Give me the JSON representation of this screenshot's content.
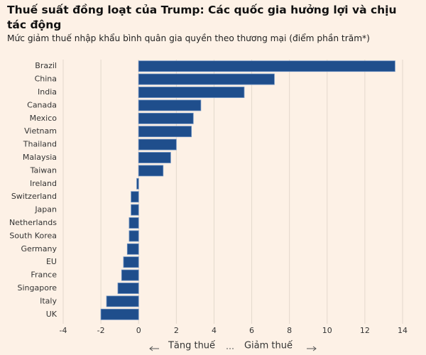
{
  "chart_data": {
    "type": "barh",
    "title": "Thuế suất đồng loạt của Trump: Các quốc gia hưởng lợi và chịu tác động",
    "subtitle": "Mức giảm thuế nhập khẩu bình quân gia quyền theo thương mại (điểm phần trăm*)",
    "categories": [
      "Brazil",
      "China",
      "India",
      "Canada",
      "Mexico",
      "Vietnam",
      "Thailand",
      "Malaysia",
      "Taiwan",
      "Ireland",
      "Switzerland",
      "Japan",
      "Netherlands",
      "South Korea",
      "Germany",
      "EU",
      "France",
      "Singapore",
      "Italy",
      "UK"
    ],
    "values": [
      13.6,
      7.2,
      5.6,
      3.3,
      2.9,
      2.8,
      2.0,
      1.7,
      1.3,
      -0.1,
      -0.4,
      -0.4,
      -0.5,
      -0.5,
      -0.6,
      -0.8,
      -0.9,
      -1.1,
      -1.7,
      -2.0
    ],
    "color": "#1f4e8c",
    "xlim": [
      -4,
      14
    ],
    "xticks": [
      -4,
      -2,
      0,
      2,
      4,
      6,
      8,
      10,
      12,
      14
    ],
    "grid": true,
    "annotations": {
      "left": "Tăng thuế",
      "right": "Giảm thuế"
    }
  }
}
